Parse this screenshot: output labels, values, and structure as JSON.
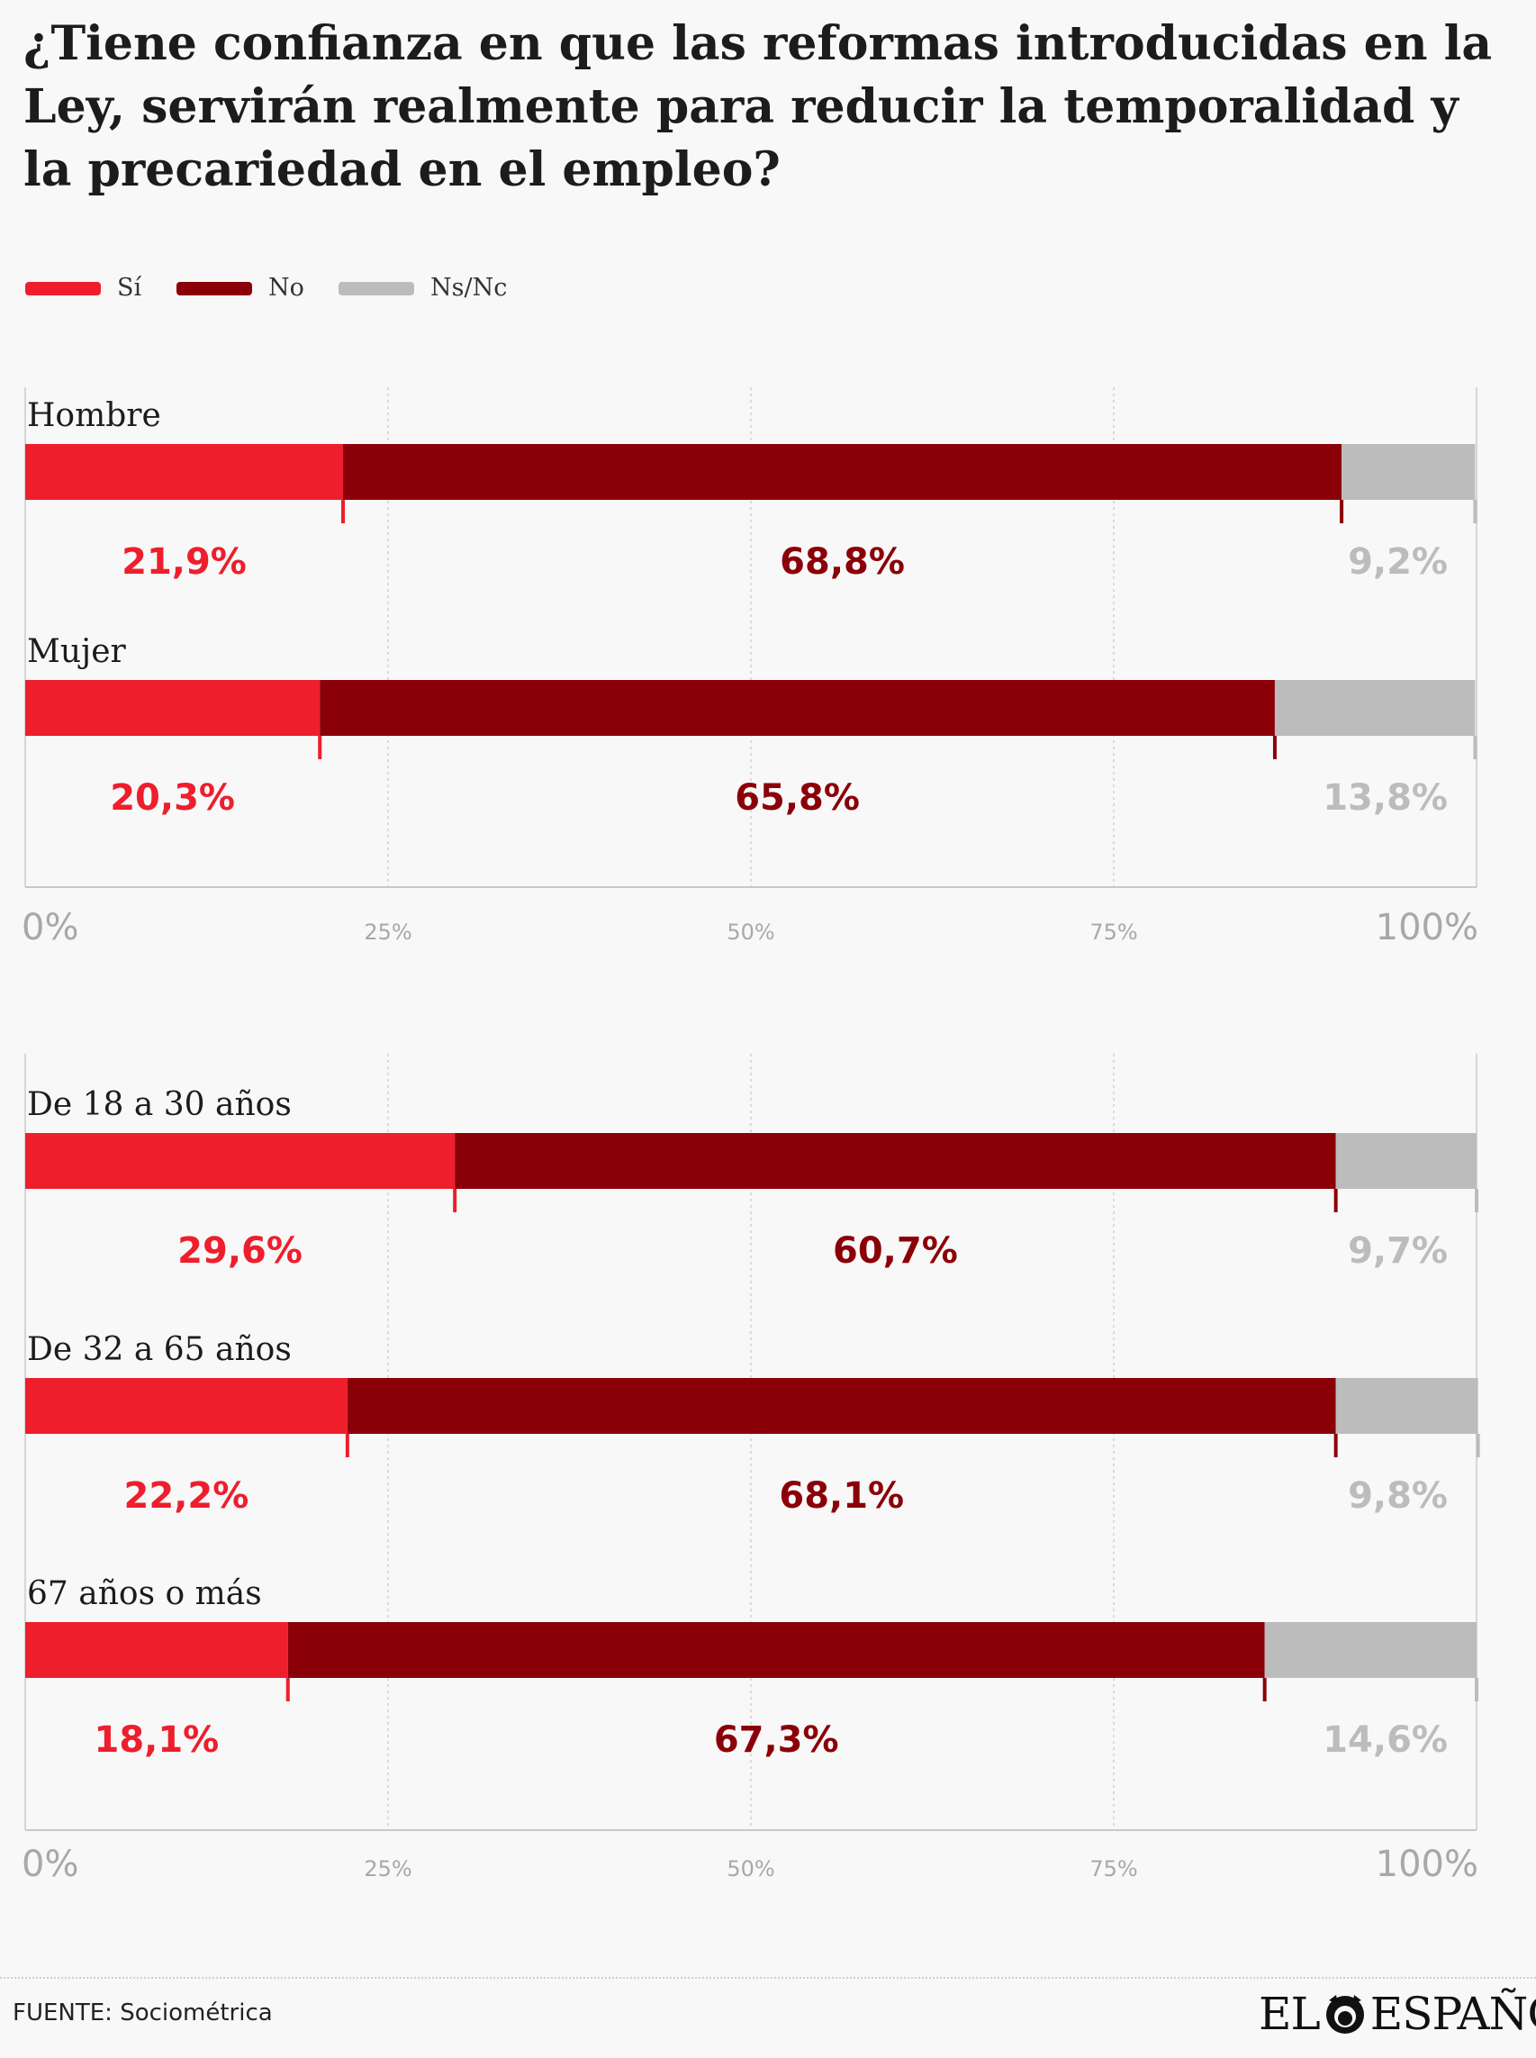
{
  "title": "¿Tiene confianza en que las reformas introducidas en la Ley, servirán realmente para reducir la temporalidad y la precariedad en el empleo?",
  "source": "FUENTE: Sociométrica",
  "brand": {
    "left": "EL",
    "right": "ESPAÑOL",
    "logo_icon": "lion-head-icon"
  },
  "colors": {
    "si": "#ee1e2d",
    "no": "#8b0008",
    "nsnc": "#bdbcbc",
    "si_label": "#ee1e2d",
    "nsnc_label": "#bdbcbc"
  },
  "legend": [
    {
      "label": "Sí",
      "key": "si"
    },
    {
      "label": "No",
      "key": "no"
    },
    {
      "label": "Ns/Nc",
      "key": "nsnc"
    }
  ],
  "chart_data": [
    {
      "type": "bar",
      "orientation": "horizontal",
      "stacked": true,
      "categories": [
        "Hombre",
        "Mujer"
      ],
      "series": [
        {
          "name": "Sí",
          "values": [
            21.9,
            20.3
          ],
          "labels": [
            "21,9%",
            "20,3%"
          ]
        },
        {
          "name": "No",
          "values": [
            68.8,
            65.8
          ],
          "labels": [
            "68,8%",
            "65,8%"
          ]
        },
        {
          "name": "Ns/Nc",
          "values": [
            9.2,
            13.8
          ],
          "labels": [
            "9,2%",
            "13,8%"
          ]
        }
      ],
      "xlim": [
        0,
        100
      ],
      "xticks": [
        "0%",
        "25%",
        "50%",
        "75%",
        "100%"
      ],
      "grid": true
    },
    {
      "type": "bar",
      "orientation": "horizontal",
      "stacked": true,
      "categories": [
        "De 18 a 30 años",
        "De 32 a 65 años",
        "67 años o más"
      ],
      "series": [
        {
          "name": "Sí",
          "values": [
            29.6,
            22.2,
            18.1
          ],
          "labels": [
            "29,6%",
            "22,2%",
            "18,1%"
          ]
        },
        {
          "name": "No",
          "values": [
            60.7,
            68.1,
            67.3
          ],
          "labels": [
            "60,7%",
            "68,1%",
            "67,3%"
          ]
        },
        {
          "name": "Ns/Nc",
          "values": [
            9.7,
            9.8,
            14.6
          ],
          "labels": [
            "9,7%",
            "9,8%",
            "14,6%"
          ]
        }
      ],
      "xlim": [
        0,
        100
      ],
      "xticks": [
        "0%",
        "25%",
        "50%",
        "75%",
        "100%"
      ],
      "grid": true
    }
  ]
}
